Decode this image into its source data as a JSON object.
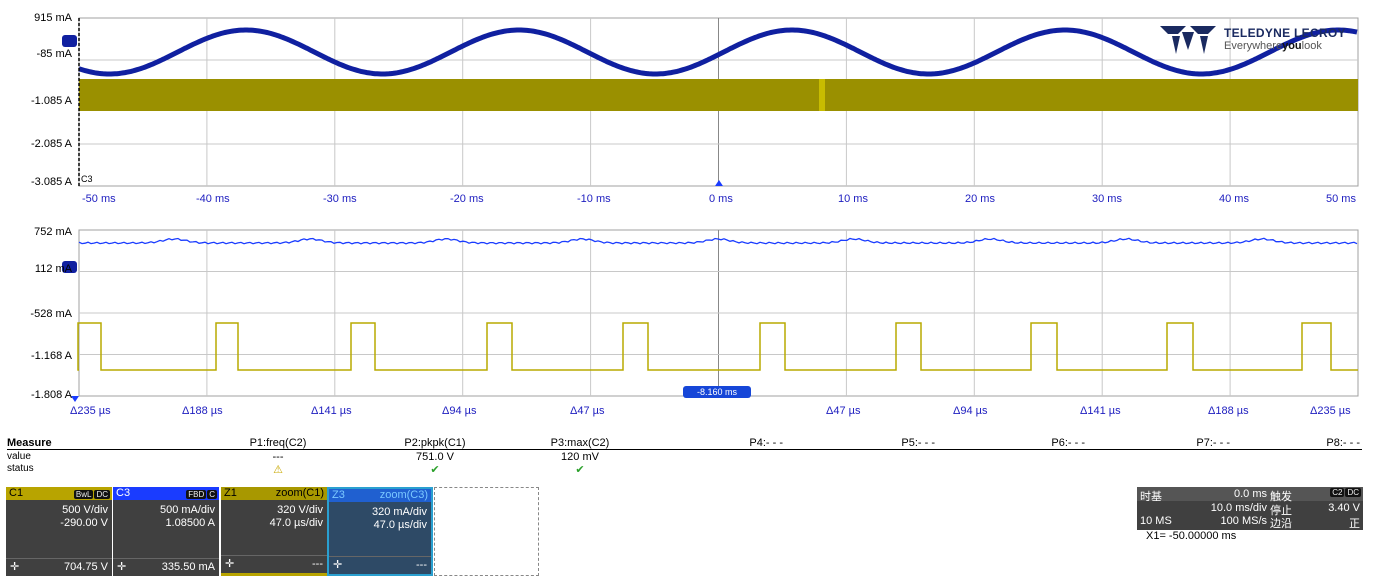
{
  "logo": {
    "brand": "TELEDYNE LECROY",
    "tagline_pre": "Everywhere",
    "tagline_bold": "you",
    "tagline_post": "look"
  },
  "colors": {
    "c1": "#9a9000",
    "c3": "#1020a0",
    "c3_bright": "#1a3cff",
    "grid": "#c0c0c0",
    "axis_text": "#2020c0"
  },
  "upper_grid": {
    "y_labels": [
      "915 mA",
      "-85 mA",
      "-1.085 A",
      "-2.085 A",
      "-3.085 A"
    ],
    "x_labels": [
      "-50 ms",
      "-40 ms",
      "-30 ms",
      "-20 ms",
      "-10 ms",
      "0 ms",
      "10 ms",
      "20 ms",
      "30 ms",
      "40 ms",
      "50 ms"
    ],
    "trace_tag": "C3"
  },
  "lower_grid": {
    "y_labels": [
      "752 mA",
      "112 mA",
      "-528 mA",
      "-1.168 A",
      "-1.808 A"
    ],
    "x_labels": [
      "Δ235 µs",
      "Δ188 µs",
      "Δ141 µs",
      "Δ94 µs",
      "Δ47 µs",
      "Δ47 µs",
      "Δ94 µs",
      "Δ141 µs",
      "Δ188 µs",
      "Δ235 µs"
    ],
    "zoom_badge": "-8.160 ms"
  },
  "measure": {
    "title": "Measure",
    "row_labels": [
      "value",
      "status"
    ],
    "params": [
      {
        "name": "P1:freq(C2)",
        "value": "---",
        "status": "warning-icon"
      },
      {
        "name": "P2:pkpk(C1)",
        "value": "751.0 V",
        "status": "check-icon"
      },
      {
        "name": "P3:max(C2)",
        "value": "120 mV",
        "status": "check-icon"
      },
      {
        "name": "P4:- - -",
        "value": "",
        "status": ""
      },
      {
        "name": "P5:- - -",
        "value": "",
        "status": ""
      },
      {
        "name": "P6:- - -",
        "value": "",
        "status": ""
      },
      {
        "name": "P7:- - -",
        "value": "",
        "status": ""
      },
      {
        "name": "P8:- - -",
        "value": "",
        "status": ""
      }
    ]
  },
  "channels": [
    {
      "id": "C1",
      "tags": [
        "BwL",
        "DC"
      ],
      "l1": "500 V/div",
      "l2": "-290.00 V",
      "foot": "704.75 V"
    },
    {
      "id": "C3",
      "tags": [
        "FBD",
        "C"
      ],
      "l1": "500 mA/div",
      "l2": "1.08500 A",
      "foot": "335.50 mA"
    },
    {
      "id": "Z1",
      "tag_text": "zoom(C1)",
      "l1": "320 V/div",
      "l2": "47.0 µs/div",
      "foot": "---"
    },
    {
      "id": "Z3",
      "tag_text": "zoom(C3)",
      "l1": "320 mA/div",
      "l2": "47.0 µs/div",
      "foot": "---"
    }
  ],
  "timebase": {
    "label": "时基",
    "delay": "0.0 ms",
    "trigger_label": "触发",
    "trigger_tags": [
      "C2",
      "DC"
    ],
    "timediv": "10.0 ms/div",
    "mode": "停止",
    "level": "3.40 V",
    "samples": "10 MS",
    "rate": "100 MS/s",
    "edge_label": "边沿",
    "slope": "正"
  },
  "cursor": {
    "x1": "X1=  -50.00000 ms"
  }
}
